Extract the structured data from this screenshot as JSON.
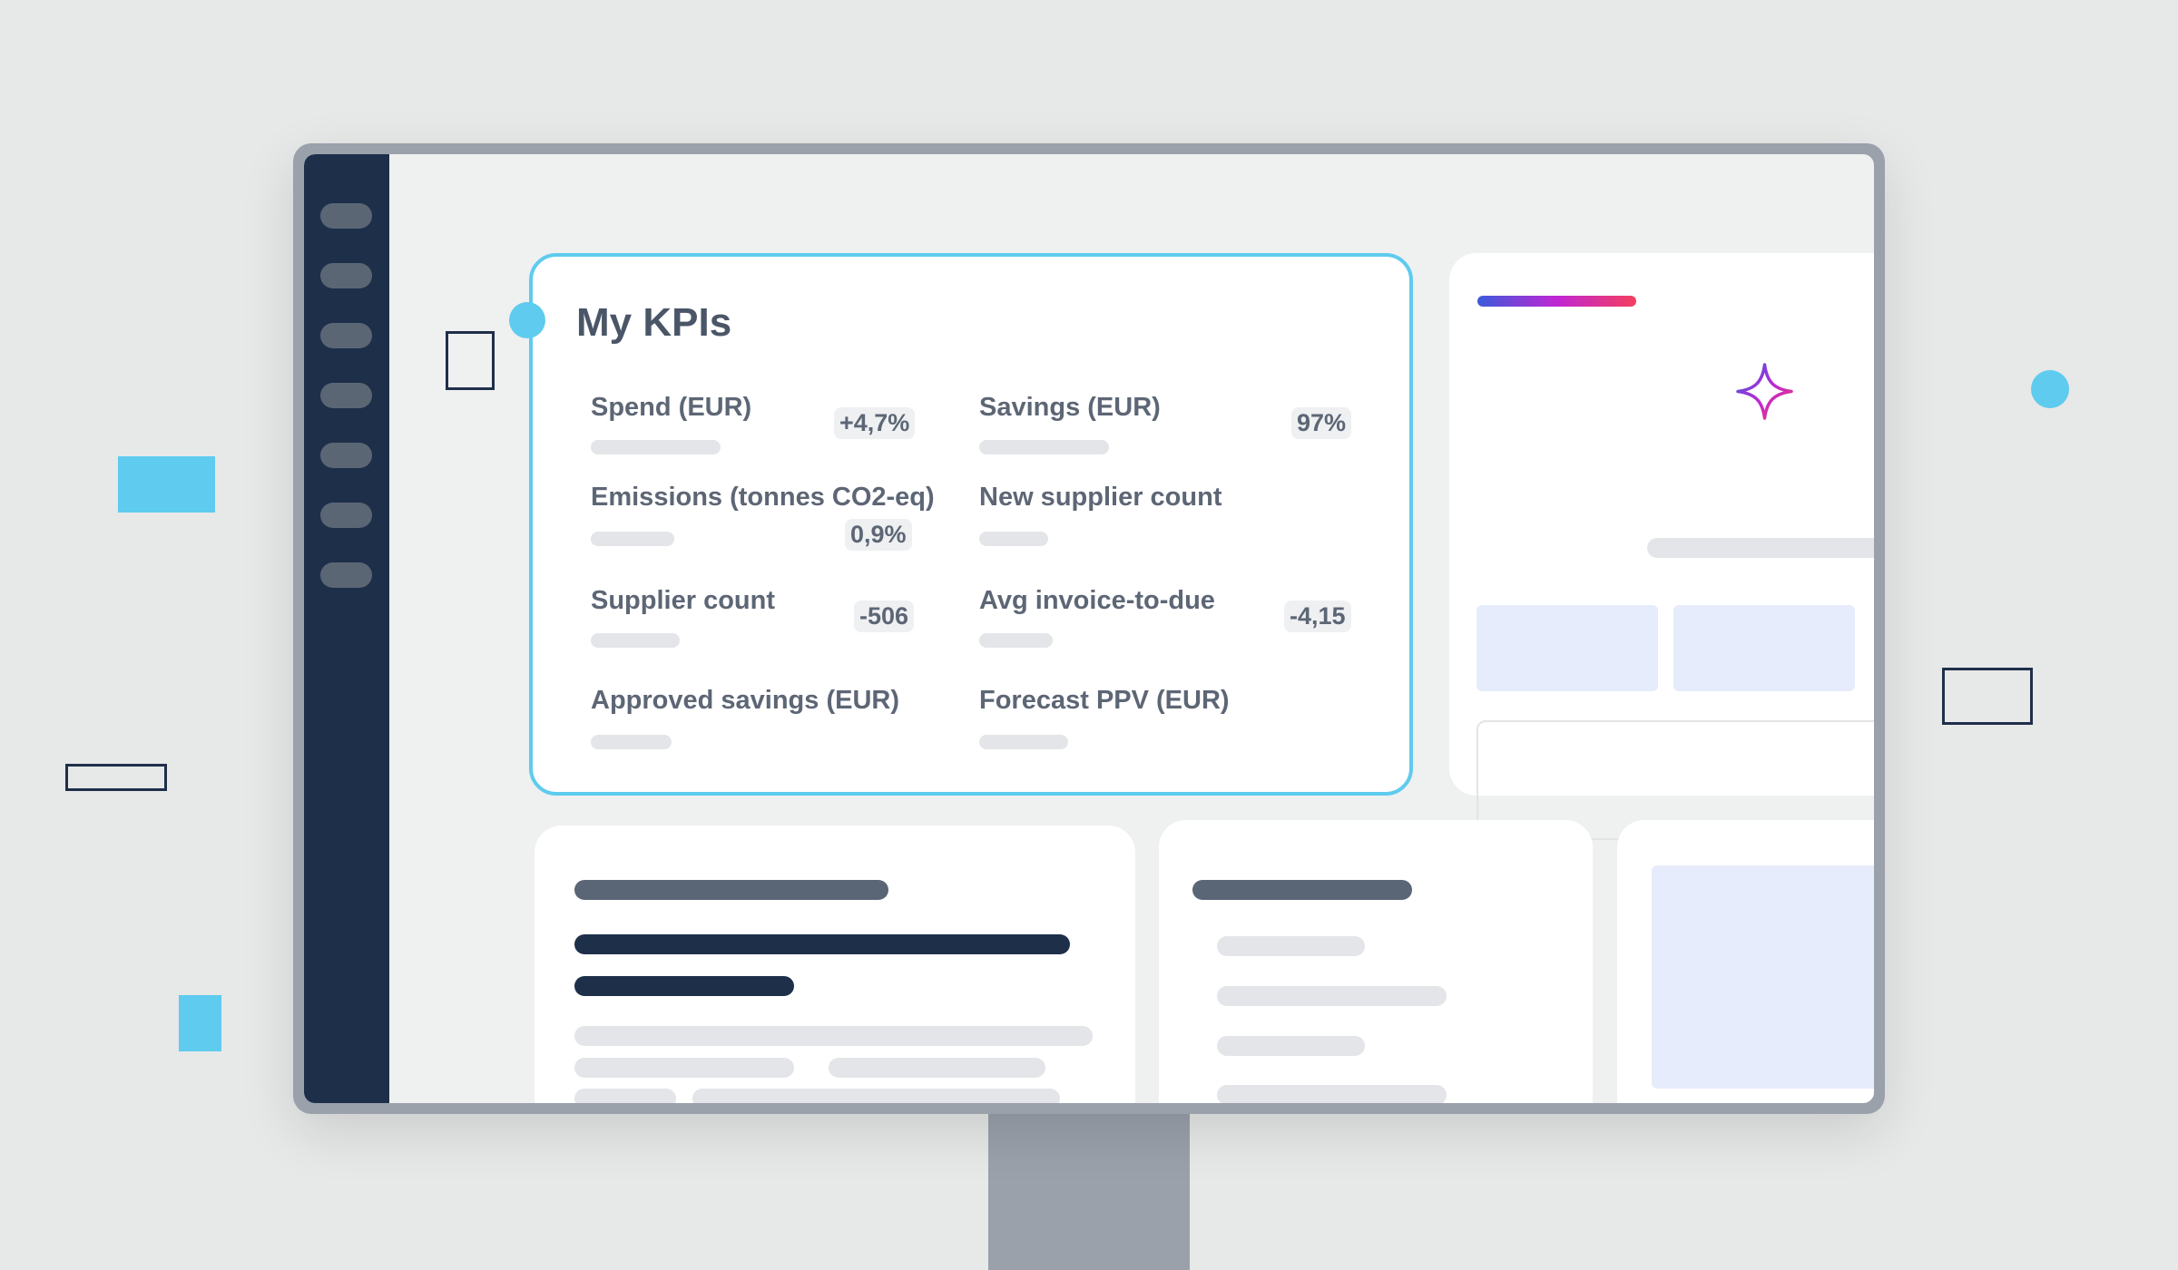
{
  "kpi_panel": {
    "title": "My KPIs",
    "items": [
      {
        "label": "Spend (EUR)",
        "badge": "+4,7%"
      },
      {
        "label": "Savings (EUR)",
        "badge": "97%"
      },
      {
        "label": "Emissions (tonnes CO2-eq)",
        "badge": "0,9%"
      },
      {
        "label": "New supplier count",
        "badge": ""
      },
      {
        "label": "Supplier count",
        "badge": "-506"
      },
      {
        "label": "Avg invoice-to-due",
        "badge": "-4,15"
      },
      {
        "label": "Approved savings (EUR)",
        "badge": ""
      },
      {
        "label": "Forecast PPV (EUR)",
        "badge": ""
      }
    ]
  },
  "icons": {
    "sparkle": "sparkle-icon"
  },
  "colors": {
    "accent": "#5ecbef",
    "sidebar": "#1e2f4a",
    "tile": "#e6ecfb"
  }
}
